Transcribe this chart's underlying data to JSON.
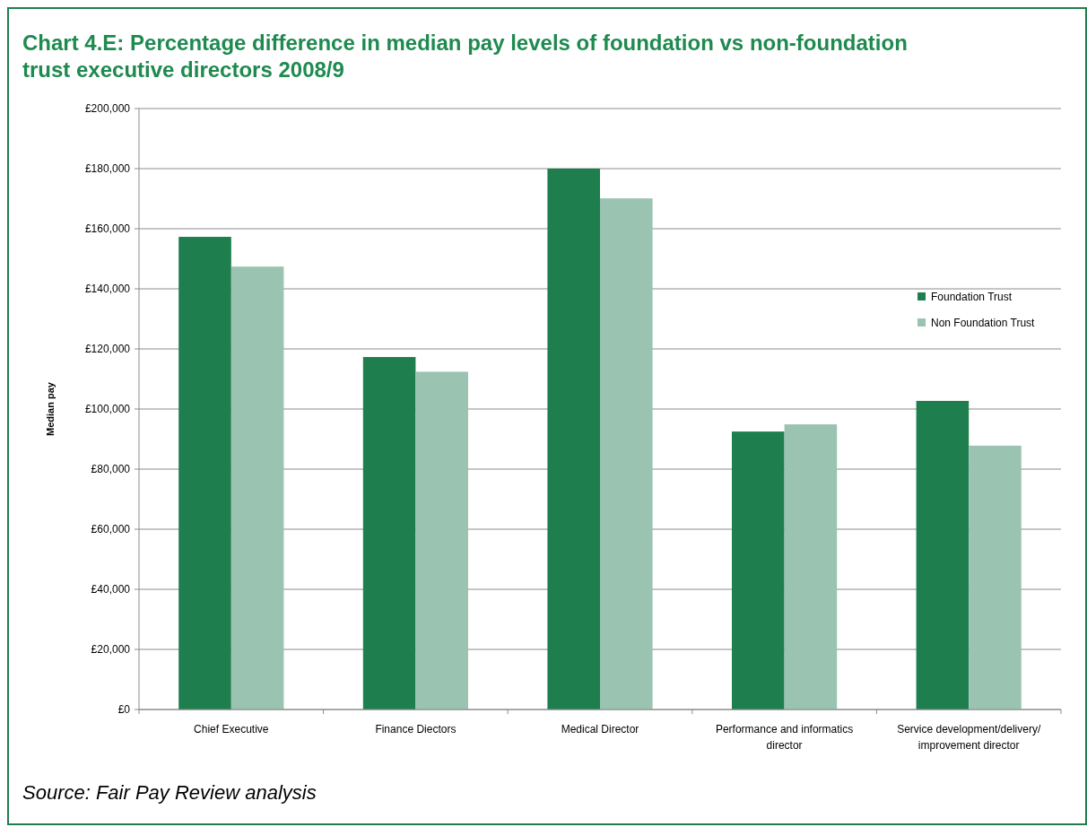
{
  "chart_data": {
    "type": "bar",
    "title": "Chart 4.E: Percentage difference in median pay levels of foundation vs non-foundation trust executive directors 2008/9",
    "ylabel": "Median pay",
    "categories": [
      "Chief Executive",
      "Finance Diectors",
      "Medical Director",
      "Performance and informatics director",
      "Service development/delivery/improvement director"
    ],
    "series": [
      {
        "name": "Foundation Trust",
        "color": "#1e7e4d",
        "values": [
          157300,
          117300,
          180000,
          92500,
          102700
        ]
      },
      {
        "name": "Non Foundation Trust",
        "color": "#9bc3b2",
        "values": [
          147400,
          112400,
          170100,
          94900,
          87800
        ]
      }
    ],
    "ylim": [
      0,
      200000
    ],
    "yticks": [
      {
        "value": 0,
        "label": "£0"
      },
      {
        "value": 20000,
        "label": "£20,000"
      },
      {
        "value": 40000,
        "label": "£40,000"
      },
      {
        "value": 60000,
        "label": "£60,000"
      },
      {
        "value": 80000,
        "label": "£80,000"
      },
      {
        "value": 100000,
        "label": "£100,000"
      },
      {
        "value": 120000,
        "label": "£120,000"
      },
      {
        "value": 140000,
        "label": "£140,000"
      },
      {
        "value": 160000,
        "label": "£160,000"
      },
      {
        "value": 180000,
        "label": "£180,000"
      },
      {
        "value": 200000,
        "label": "£200,000"
      }
    ],
    "grid": "y",
    "legend": "right",
    "annotations": [
      "Source: Fair Pay Review analysis"
    ]
  }
}
